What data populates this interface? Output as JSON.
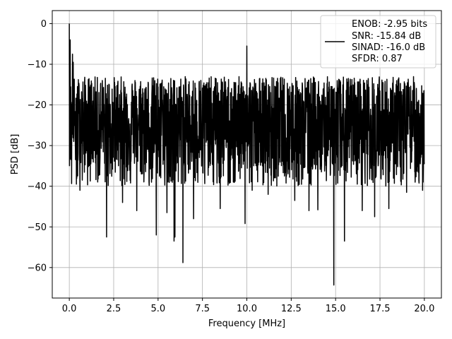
{
  "chart_data": {
    "type": "line",
    "xlabel": "Frequency [MHz]",
    "ylabel": "PSD [dB]",
    "xlim": [
      -0.96,
      20.96
    ],
    "ylim": [
      -67.5,
      3.2
    ],
    "x_ticks": [
      0.0,
      2.5,
      5.0,
      7.5,
      10.0,
      12.5,
      15.0,
      17.5,
      20.0
    ],
    "x_tick_labels": [
      "0.0",
      "2.5",
      "5.0",
      "7.5",
      "10.0",
      "12.5",
      "15.0",
      "17.5",
      "20.0"
    ],
    "y_ticks": [
      0,
      -10,
      -20,
      -30,
      -40,
      -50,
      -60
    ],
    "y_tick_labels": [
      "0",
      "−10",
      "−20",
      "−30",
      "−40",
      "−50",
      "−60"
    ],
    "grid": true,
    "legend_position": "top-right",
    "series": [
      {
        "name": "ENOB: -2.95 bits\nSNR: -15.84 dB\nSINAD: -16.0 dB\nSFDR: 0.87",
        "legend_lines": [
          "ENOB: -2.95 bits",
          "SNR: -15.84 dB",
          "SINAD: -16.0 dB",
          "SFDR: 0.87"
        ],
        "color": "#000000",
        "x_range": [
          0.0,
          20.0
        ],
        "noise_floor_mean_db": -25,
        "noise_upper_envelope_db": -13,
        "noise_lower_typical_db": -40,
        "peaks": [
          {
            "x": 0.0,
            "y": 0.0
          },
          {
            "x": 0.05,
            "y": -4.0
          },
          {
            "x": 0.18,
            "y": -7.5
          },
          {
            "x": 0.22,
            "y": -9.5
          },
          {
            "x": 10.0,
            "y": -5.5
          }
        ],
        "dips": [
          {
            "x": 0.4,
            "y": -39.5
          },
          {
            "x": 0.6,
            "y": -41.0
          },
          {
            "x": 2.1,
            "y": -52.5
          },
          {
            "x": 3.0,
            "y": -44.0
          },
          {
            "x": 3.8,
            "y": -46.0
          },
          {
            "x": 4.9,
            "y": -52.0
          },
          {
            "x": 5.5,
            "y": -46.5
          },
          {
            "x": 5.9,
            "y": -53.5
          },
          {
            "x": 5.95,
            "y": -52.5
          },
          {
            "x": 6.4,
            "y": -58.8
          },
          {
            "x": 7.0,
            "y": -48.0
          },
          {
            "x": 8.5,
            "y": -45.5
          },
          {
            "x": 9.9,
            "y": -49.2
          },
          {
            "x": 10.3,
            "y": -41.0
          },
          {
            "x": 11.2,
            "y": -42.0
          },
          {
            "x": 12.7,
            "y": -43.5
          },
          {
            "x": 13.5,
            "y": -46.0
          },
          {
            "x": 14.0,
            "y": -45.8
          },
          {
            "x": 14.9,
            "y": -64.3
          },
          {
            "x": 15.5,
            "y": -53.5
          },
          {
            "x": 16.5,
            "y": -46.0
          },
          {
            "x": 17.2,
            "y": -47.5
          },
          {
            "x": 18.0,
            "y": -45.5
          },
          {
            "x": 19.0,
            "y": -41.5
          },
          {
            "x": 19.9,
            "y": -41.0
          }
        ]
      }
    ]
  }
}
